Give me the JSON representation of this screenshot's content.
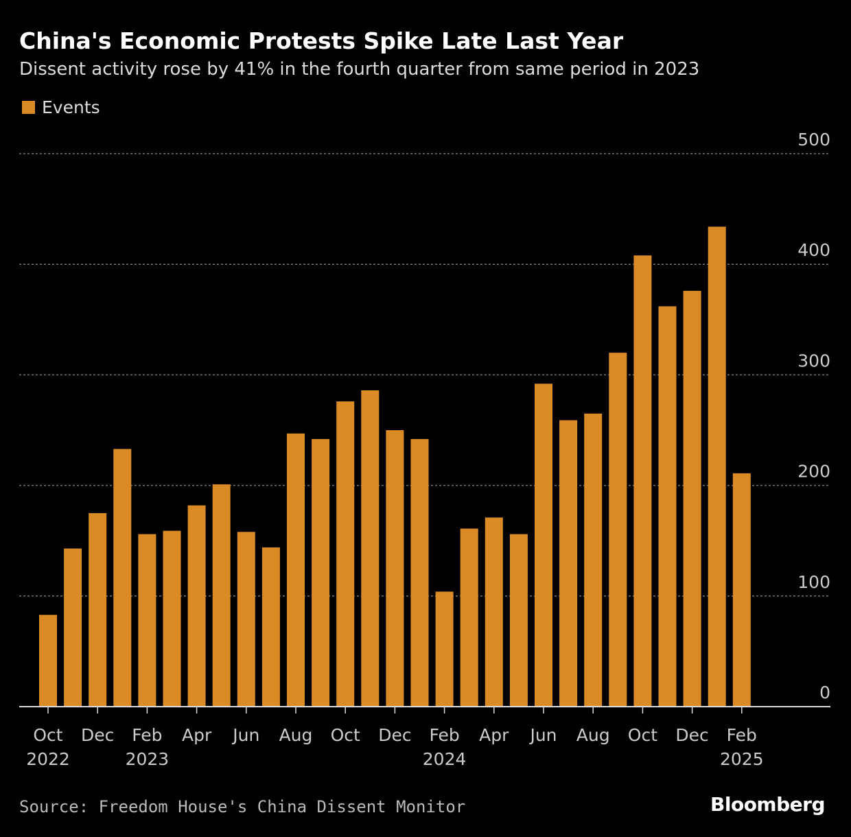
{
  "chart_data": {
    "type": "bar",
    "title": "China's Economic Protests Spike Late Last Year",
    "subtitle": "Dissent activity rose by 41% in the fourth quarter from same period in 2023",
    "legend": {
      "label": "Events",
      "placement": "top-left"
    },
    "series": [
      {
        "name": "Events",
        "color": "#DA8B26",
        "values": [
          83,
          143,
          175,
          233,
          156,
          159,
          182,
          201,
          158,
          144,
          247,
          242,
          276,
          286,
          250,
          242,
          104,
          161,
          171,
          156,
          292,
          259,
          265,
          320,
          408,
          362,
          376,
          434,
          211
        ]
      }
    ],
    "categories": [
      "Oct 2022",
      "Nov 2022",
      "Dec 2022",
      "Jan 2023",
      "Feb 2023",
      "Mar 2023",
      "Apr 2023",
      "May 2023",
      "Jun 2023",
      "Jul 2023",
      "Aug 2023",
      "Sep 2023",
      "Oct 2023",
      "Nov 2023",
      "Dec 2023",
      "Jan 2024",
      "Feb 2024",
      "Mar 2024",
      "Apr 2024",
      "May 2024",
      "Jun 2024",
      "Jul 2024",
      "Aug 2024",
      "Sep 2024",
      "Oct 2024",
      "Nov 2024",
      "Dec 2024",
      "Jan 2025",
      "Feb 2025"
    ],
    "x_tick_labels": [
      {
        "month": "Oct",
        "year": "2022"
      },
      {
        "month": "Dec",
        "year": ""
      },
      {
        "month": "Feb",
        "year": "2023"
      },
      {
        "month": "Apr",
        "year": ""
      },
      {
        "month": "Jun",
        "year": ""
      },
      {
        "month": "Aug",
        "year": ""
      },
      {
        "month": "Oct",
        "year": ""
      },
      {
        "month": "Dec",
        "year": ""
      },
      {
        "month": "Feb",
        "year": "2024"
      },
      {
        "month": "Apr",
        "year": ""
      },
      {
        "month": "Jun",
        "year": ""
      },
      {
        "month": "Aug",
        "year": ""
      },
      {
        "month": "Oct",
        "year": ""
      },
      {
        "month": "Dec",
        "year": ""
      },
      {
        "month": "Feb",
        "year": "2025"
      }
    ],
    "y_ticks": [
      "0",
      "100",
      "200",
      "300",
      "400",
      "500"
    ],
    "ylim": [
      0,
      500
    ],
    "y_axis_side": "right",
    "grid": true,
    "xlabel": "",
    "ylabel": ""
  },
  "source": "Source: Freedom House's China Dissent Monitor",
  "logo": "Bloomberg"
}
